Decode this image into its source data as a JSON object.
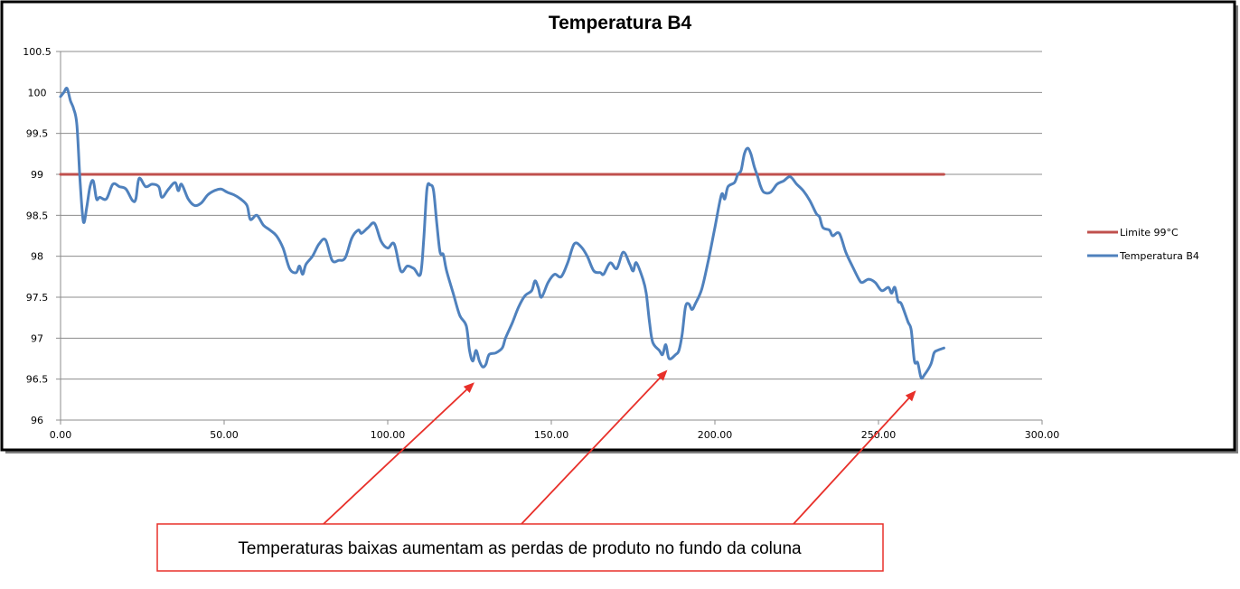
{
  "chart_data": {
    "type": "line",
    "title": "Temperatura B4",
    "xlabel": "",
    "ylabel": "",
    "xlim": [
      0,
      300
    ],
    "ylim": [
      96,
      100.5
    ],
    "x_ticks": [
      "0.00",
      "50.00",
      "100.00",
      "150.00",
      "200.00",
      "250.00",
      "300.00"
    ],
    "y_ticks": [
      "96",
      "96.5",
      "97",
      "97.5",
      "98",
      "98.5",
      "99",
      "99.5",
      "100",
      "100.5"
    ],
    "grid": "horizontal",
    "legend_position": "right",
    "series": [
      {
        "name": "Limite 99°C",
        "color": "#c0504d",
        "points": [
          [
            0,
            99
          ],
          [
            270,
            99
          ]
        ]
      },
      {
        "name": "Temperatura B4",
        "color": "#4f81bd",
        "points": [
          [
            0,
            99.95
          ],
          [
            1,
            100.0
          ],
          [
            2,
            100.05
          ],
          [
            3,
            99.9
          ],
          [
            4,
            99.8
          ],
          [
            5,
            99.6
          ],
          [
            6,
            98.9
          ],
          [
            7,
            98.42
          ],
          [
            8,
            98.6
          ],
          [
            9,
            98.85
          ],
          [
            10,
            98.92
          ],
          [
            11,
            98.7
          ],
          [
            12,
            98.72
          ],
          [
            14,
            98.7
          ],
          [
            16,
            98.88
          ],
          [
            18,
            98.85
          ],
          [
            20,
            98.82
          ],
          [
            22,
            98.68
          ],
          [
            23,
            98.7
          ],
          [
            24,
            98.95
          ],
          [
            26,
            98.85
          ],
          [
            28,
            98.88
          ],
          [
            30,
            98.85
          ],
          [
            31,
            98.72
          ],
          [
            33,
            98.82
          ],
          [
            35,
            98.9
          ],
          [
            36,
            98.8
          ],
          [
            37,
            98.88
          ],
          [
            39,
            98.7
          ],
          [
            41,
            98.62
          ],
          [
            43,
            98.65
          ],
          [
            45,
            98.75
          ],
          [
            47,
            98.8
          ],
          [
            49,
            98.82
          ],
          [
            51,
            98.78
          ],
          [
            53,
            98.75
          ],
          [
            55,
            98.7
          ],
          [
            57,
            98.62
          ],
          [
            58,
            98.45
          ],
          [
            60,
            98.5
          ],
          [
            62,
            98.38
          ],
          [
            64,
            98.32
          ],
          [
            66,
            98.25
          ],
          [
            68,
            98.1
          ],
          [
            70,
            97.85
          ],
          [
            72,
            97.8
          ],
          [
            73,
            97.88
          ],
          [
            74,
            97.78
          ],
          [
            75,
            97.9
          ],
          [
            77,
            98.0
          ],
          [
            79,
            98.15
          ],
          [
            81,
            98.2
          ],
          [
            83,
            97.95
          ],
          [
            85,
            97.95
          ],
          [
            87,
            97.98
          ],
          [
            89,
            98.22
          ],
          [
            91,
            98.32
          ],
          [
            92,
            98.28
          ],
          [
            94,
            98.35
          ],
          [
            96,
            98.4
          ],
          [
            98,
            98.18
          ],
          [
            100,
            98.1
          ],
          [
            102,
            98.15
          ],
          [
            104,
            97.82
          ],
          [
            106,
            97.88
          ],
          [
            108,
            97.85
          ],
          [
            110,
            97.78
          ],
          [
            111,
            98.2
          ],
          [
            112,
            98.82
          ],
          [
            113,
            98.87
          ],
          [
            114,
            98.8
          ],
          [
            115,
            98.4
          ],
          [
            116,
            98.05
          ],
          [
            117,
            98.02
          ],
          [
            118,
            97.82
          ],
          [
            120,
            97.55
          ],
          [
            122,
            97.28
          ],
          [
            124,
            97.15
          ],
          [
            125,
            96.85
          ],
          [
            126,
            96.72
          ],
          [
            127,
            96.85
          ],
          [
            128,
            96.72
          ],
          [
            129,
            96.65
          ],
          [
            130,
            96.68
          ],
          [
            131,
            96.8
          ],
          [
            133,
            96.82
          ],
          [
            135,
            96.88
          ],
          [
            136,
            97.0
          ],
          [
            138,
            97.18
          ],
          [
            140,
            97.38
          ],
          [
            142,
            97.52
          ],
          [
            144,
            97.58
          ],
          [
            145,
            97.7
          ],
          [
            146,
            97.62
          ],
          [
            147,
            97.5
          ],
          [
            149,
            97.68
          ],
          [
            151,
            97.78
          ],
          [
            153,
            97.75
          ],
          [
            155,
            97.92
          ],
          [
            157,
            98.15
          ],
          [
            159,
            98.12
          ],
          [
            161,
            98.0
          ],
          [
            163,
            97.82
          ],
          [
            165,
            97.8
          ],
          [
            166,
            97.78
          ],
          [
            168,
            97.92
          ],
          [
            170,
            97.85
          ],
          [
            172,
            98.05
          ],
          [
            174,
            97.9
          ],
          [
            175,
            97.82
          ],
          [
            176,
            97.92
          ],
          [
            178,
            97.72
          ],
          [
            179,
            97.55
          ],
          [
            180,
            97.2
          ],
          [
            181,
            96.95
          ],
          [
            183,
            96.85
          ],
          [
            184,
            96.8
          ],
          [
            185,
            96.92
          ],
          [
            186,
            96.75
          ],
          [
            188,
            96.8
          ],
          [
            189,
            96.85
          ],
          [
            190,
            97.05
          ],
          [
            191,
            97.38
          ],
          [
            192,
            97.42
          ],
          [
            193,
            97.35
          ],
          [
            194,
            97.42
          ],
          [
            196,
            97.6
          ],
          [
            198,
            97.95
          ],
          [
            200,
            98.35
          ],
          [
            202,
            98.75
          ],
          [
            203,
            98.7
          ],
          [
            204,
            98.85
          ],
          [
            206,
            98.9
          ],
          [
            207,
            99.0
          ],
          [
            208,
            99.05
          ],
          [
            209,
            99.25
          ],
          [
            210,
            99.32
          ],
          [
            211,
            99.25
          ],
          [
            212,
            99.1
          ],
          [
            213,
            98.98
          ],
          [
            214,
            98.85
          ],
          [
            215,
            98.78
          ],
          [
            217,
            98.78
          ],
          [
            219,
            98.88
          ],
          [
            221,
            98.92
          ],
          [
            223,
            98.97
          ],
          [
            225,
            98.88
          ],
          [
            227,
            98.8
          ],
          [
            229,
            98.68
          ],
          [
            231,
            98.52
          ],
          [
            232,
            98.48
          ],
          [
            233,
            98.35
          ],
          [
            235,
            98.32
          ],
          [
            236,
            98.25
          ],
          [
            238,
            98.28
          ],
          [
            240,
            98.05
          ],
          [
            242,
            97.88
          ],
          [
            244,
            97.72
          ],
          [
            245,
            97.68
          ],
          [
            247,
            97.72
          ],
          [
            249,
            97.68
          ],
          [
            251,
            97.58
          ],
          [
            253,
            97.62
          ],
          [
            254,
            97.55
          ],
          [
            255,
            97.62
          ],
          [
            256,
            97.45
          ],
          [
            257,
            97.42
          ],
          [
            259,
            97.2
          ],
          [
            260,
            97.1
          ],
          [
            261,
            96.72
          ],
          [
            262,
            96.7
          ],
          [
            263,
            96.52
          ],
          [
            264,
            96.55
          ],
          [
            266,
            96.68
          ],
          [
            267,
            96.82
          ],
          [
            268,
            96.85
          ],
          [
            270,
            96.88
          ]
        ]
      }
    ],
    "annotation": {
      "text": "Temperaturas baixas aumentam as perdas de produto no fundo da coluna",
      "arrow_color": "#e8302a",
      "arrow_targets": [
        [
          125,
          96.6
        ],
        [
          184,
          96.75
        ],
        [
          260,
          96.5
        ]
      ]
    }
  }
}
